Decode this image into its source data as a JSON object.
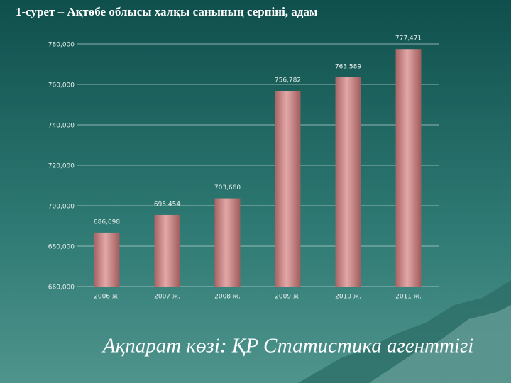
{
  "chart_data": {
    "type": "bar",
    "title": "1-сурет – Ақтөбе облысы халқы санының серпіні, адам",
    "source": "Ақпарат көзі: ҚР Статистика агенттігі",
    "categories": [
      "2006 ж.",
      "2007 ж.",
      "2008 ж.",
      "2009 ж.",
      "2010 ж.",
      "2011 ж."
    ],
    "values": [
      686698,
      695454,
      703660,
      756782,
      763589,
      777471
    ],
    "value_labels": [
      "686,698",
      "695,454",
      "703,660",
      "756,782",
      "763,589",
      "777,471"
    ],
    "color": "#c98585",
    "ylim": [
      660000,
      780000
    ],
    "yticks": [
      {
        "value": 660000,
        "label": "660,000"
      },
      {
        "value": 680000,
        "label": "680,000"
      },
      {
        "value": 700000,
        "label": "700,000"
      },
      {
        "value": 720000,
        "label": "720,000"
      },
      {
        "value": 740000,
        "label": "740,000"
      },
      {
        "value": 760000,
        "label": "760,000"
      },
      {
        "value": 780000,
        "label": "780,000"
      }
    ],
    "grid": true
  }
}
